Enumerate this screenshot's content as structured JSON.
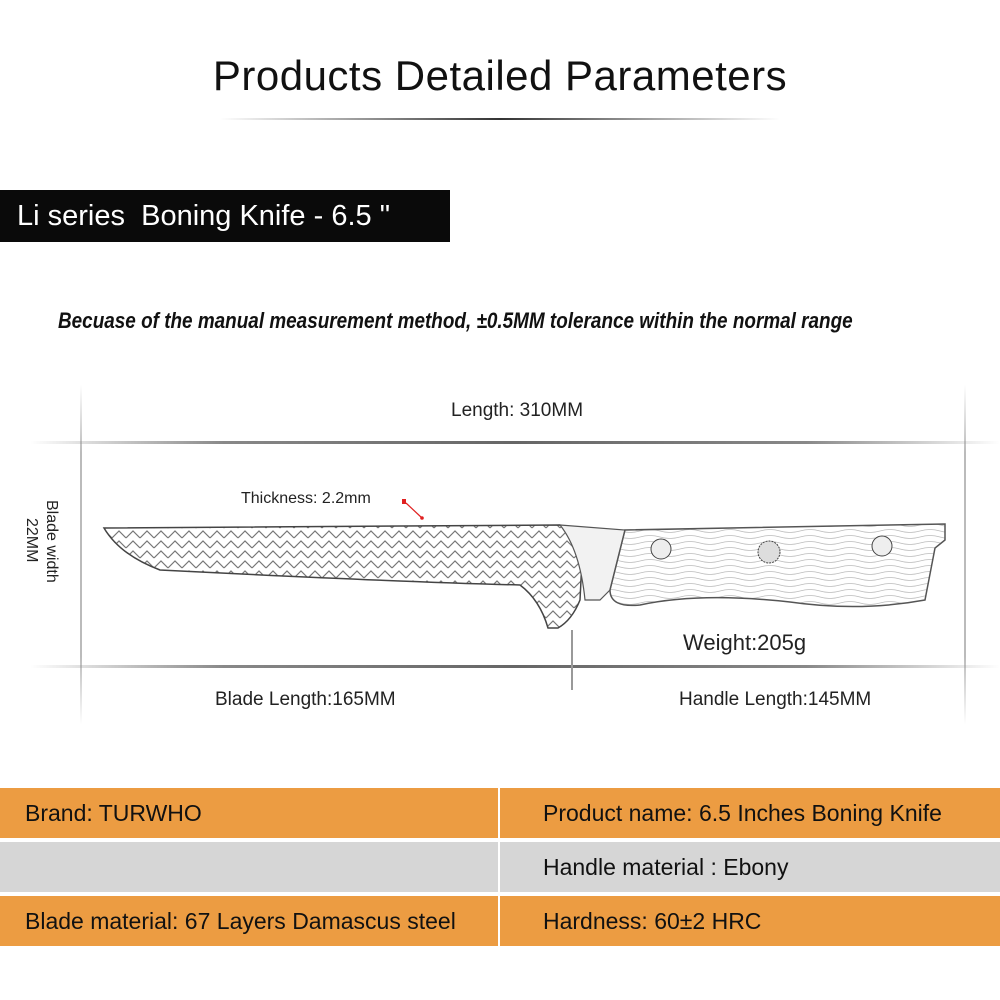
{
  "title": "Products Detailed Parameters",
  "series_label": "Li series  Boning Knife - 6.5 \"",
  "note": "Becuase of the manual measurement method, ±0.5MM tolerance within the normal range",
  "diagram": {
    "length": "Length: 310MM",
    "thickness": "Thickness: 2.2mm",
    "blade_width_line1": "Blade width",
    "blade_width_line2": "22MM",
    "weight": "Weight:205g",
    "blade_length": "Blade Length:165MM",
    "handle_length": "Handle Length:145MM",
    "marker_color": "#e02020"
  },
  "specs": {
    "rows": [
      {
        "left": "Brand: TURWHO",
        "right": "Product name: 6.5 Inches Boning Knife",
        "color": "#ec9c42"
      },
      {
        "left": "",
        "right": "Handle material : Ebony",
        "color": "#d6d6d6"
      },
      {
        "left": "Blade material: 67 Layers Damascus steel",
        "right": "Hardness:  60±2 HRC",
        "color": "#ec9c42"
      }
    ]
  }
}
